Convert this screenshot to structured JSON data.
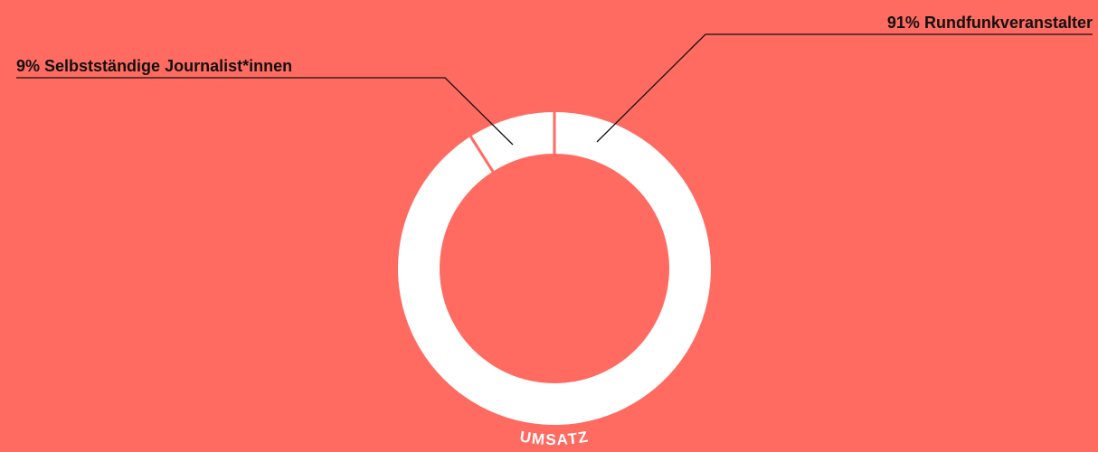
{
  "chart_data": {
    "type": "donut",
    "title": "UMSATZ",
    "categories": [
      "Rundfunkveranstalter",
      "Selbstständige Journalist*innen"
    ],
    "values": [
      91,
      9
    ],
    "value_labels": [
      "91%",
      "9%"
    ],
    "colors": [
      "#ffffff",
      "#ffffff"
    ],
    "background": "#ff6b61"
  }
}
